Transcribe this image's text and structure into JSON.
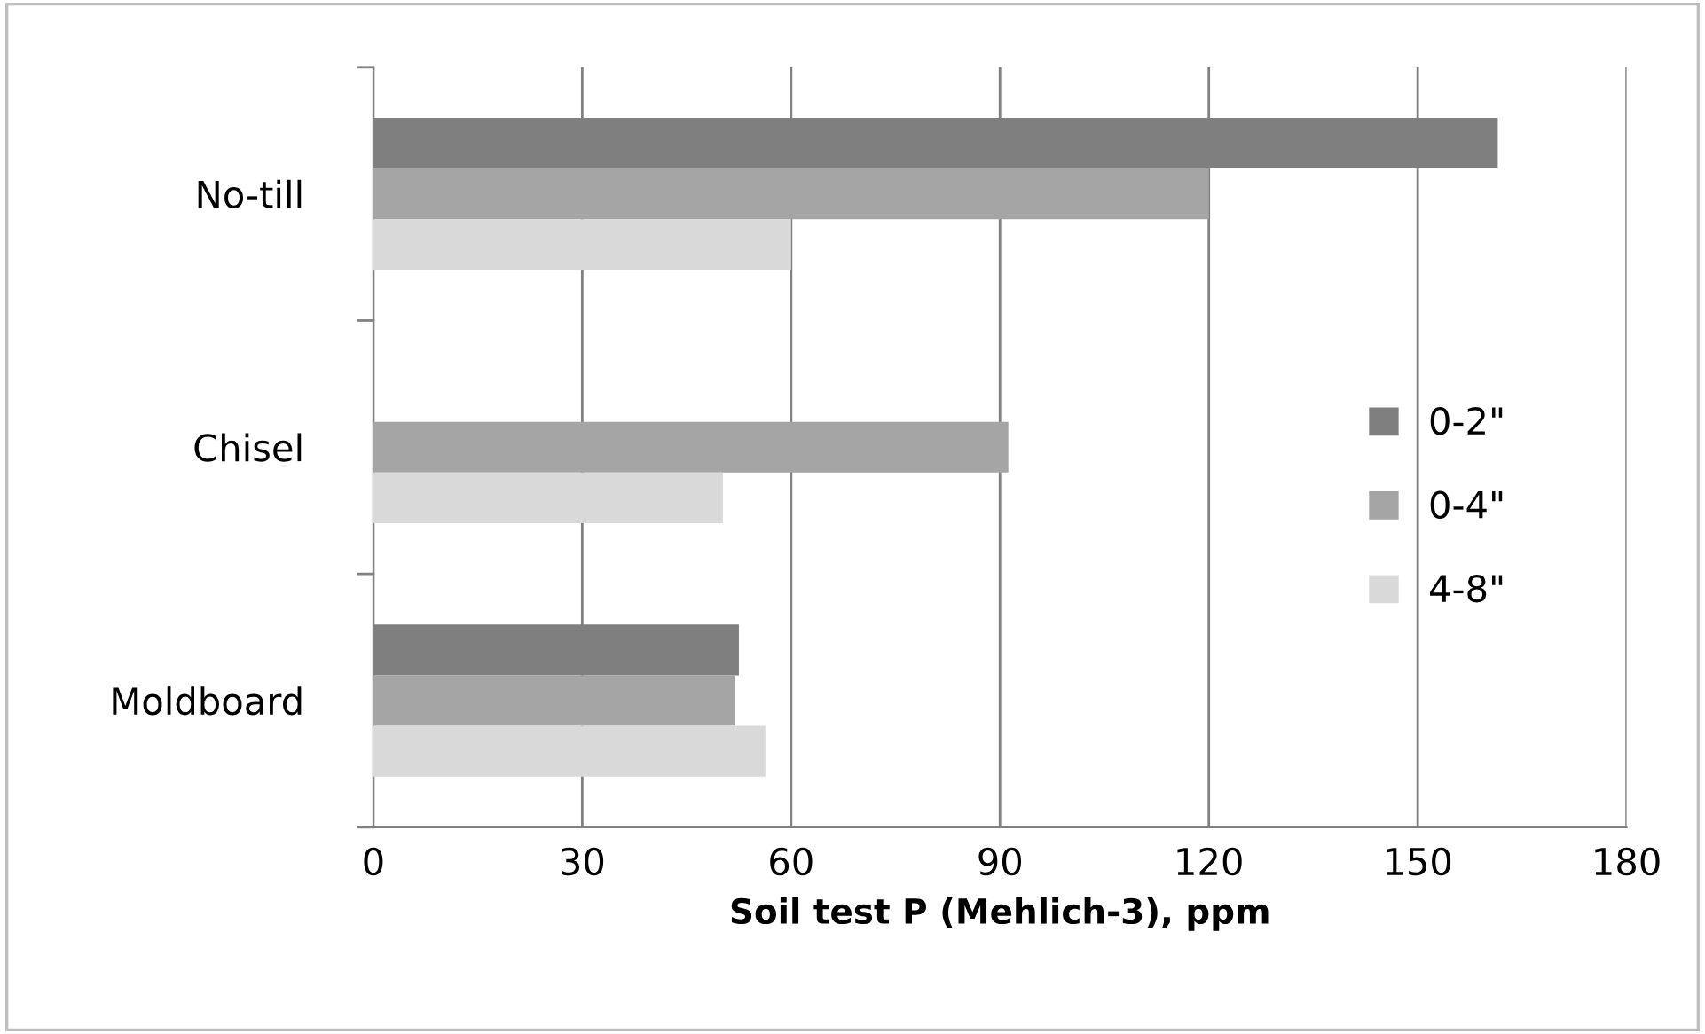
{
  "chart_data": {
    "type": "bar",
    "orientation": "horizontal",
    "xlabel": "Soil test P (Mehlich-3), ppm",
    "categories": [
      "No-till",
      "Chisel",
      "Moldboard"
    ],
    "series": [
      {
        "name": "0-2\"",
        "color": "#7f7f7f",
        "values": [
          161.5,
          null,
          52.5
        ]
      },
      {
        "name": "0-4\"",
        "color": "#a5a5a5",
        "values": [
          120,
          91.2,
          51.9
        ]
      },
      {
        "name": "4-8\"",
        "color": "#d9d9d9",
        "values": [
          60,
          50.2,
          56.3
        ]
      }
    ],
    "xlim": [
      0,
      180
    ],
    "xticks": [
      0,
      30,
      60,
      90,
      120,
      150,
      180
    ],
    "grid": "x",
    "legend": "right"
  }
}
